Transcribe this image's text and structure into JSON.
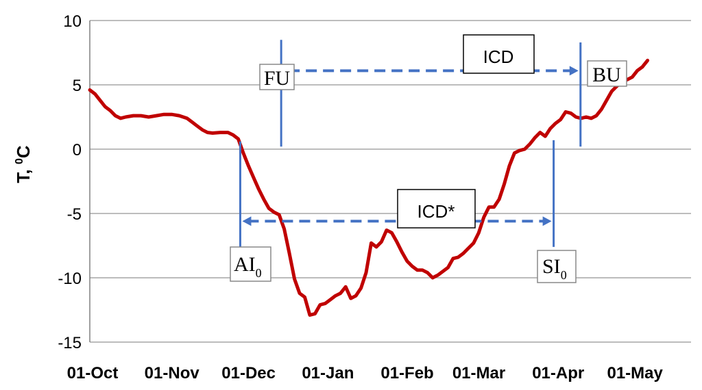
{
  "chart_data": {
    "type": "line",
    "title": "",
    "xlabel": "",
    "ylabel": "T, ⁰C",
    "ylabel_parts": {
      "main": "T, ",
      "sup": "0",
      "unit": "C"
    },
    "ylim": [
      -15,
      10
    ],
    "y_ticks": [
      10,
      5,
      0,
      -5,
      -10,
      -15
    ],
    "x_start": "2012-10-01",
    "x_ticks": [
      {
        "label": "01-Oct",
        "day": 0
      },
      {
        "label": "01-Nov",
        "day": 31
      },
      {
        "label": "01-Dec",
        "day": 61
      },
      {
        "label": "01-Jan",
        "day": 92
      },
      {
        "label": "01-Feb",
        "day": 123
      },
      {
        "label": "01-Mar",
        "day": 151
      },
      {
        "label": "01-Apr",
        "day": 182
      },
      {
        "label": "01-May",
        "day": 212
      }
    ],
    "xlim_days": [
      0,
      235
    ],
    "grid": true,
    "series": [
      {
        "color": "#c00000",
        "points": [
          [
            0,
            4.6
          ],
          [
            2,
            4.3
          ],
          [
            4,
            3.8
          ],
          [
            6,
            3.3
          ],
          [
            8,
            3.0
          ],
          [
            10,
            2.6
          ],
          [
            12,
            2.4
          ],
          [
            14,
            2.5
          ],
          [
            17,
            2.6
          ],
          [
            20,
            2.6
          ],
          [
            23,
            2.5
          ],
          [
            26,
            2.6
          ],
          [
            29,
            2.7
          ],
          [
            32,
            2.7
          ],
          [
            35,
            2.6
          ],
          [
            38,
            2.4
          ],
          [
            40,
            2.1
          ],
          [
            42,
            1.8
          ],
          [
            44,
            1.5
          ],
          [
            46,
            1.3
          ],
          [
            48,
            1.25
          ],
          [
            51,
            1.3
          ],
          [
            54,
            1.3
          ],
          [
            56,
            1.1
          ],
          [
            58,
            0.8
          ],
          [
            60,
            -0.3
          ],
          [
            62,
            -1.3
          ],
          [
            64,
            -2.2
          ],
          [
            66,
            -3.1
          ],
          [
            68,
            -3.9
          ],
          [
            70,
            -4.6
          ],
          [
            72,
            -4.9
          ],
          [
            74,
            -5.1
          ],
          [
            76,
            -6.2
          ],
          [
            78,
            -8.1
          ],
          [
            80,
            -10.1
          ],
          [
            82,
            -11.2
          ],
          [
            84,
            -11.5
          ],
          [
            86,
            -12.9
          ],
          [
            88,
            -12.8
          ],
          [
            90,
            -12.1
          ],
          [
            92,
            -12.0
          ],
          [
            94,
            -11.7
          ],
          [
            96,
            -11.4
          ],
          [
            98,
            -11.2
          ],
          [
            100,
            -10.7
          ],
          [
            102,
            -11.6
          ],
          [
            104,
            -11.4
          ],
          [
            106,
            -10.8
          ],
          [
            108,
            -9.6
          ],
          [
            110,
            -7.3
          ],
          [
            112,
            -7.6
          ],
          [
            114,
            -7.2
          ],
          [
            116,
            -6.3
          ],
          [
            118,
            -6.5
          ],
          [
            120,
            -7.2
          ],
          [
            122,
            -8.0
          ],
          [
            124,
            -8.7
          ],
          [
            126,
            -9.1
          ],
          [
            128,
            -9.4
          ],
          [
            130,
            -9.4
          ],
          [
            132,
            -9.6
          ],
          [
            134,
            -10.0
          ],
          [
            136,
            -9.8
          ],
          [
            138,
            -9.5
          ],
          [
            140,
            -9.2
          ],
          [
            142,
            -8.5
          ],
          [
            144,
            -8.4
          ],
          [
            146,
            -8.1
          ],
          [
            148,
            -7.7
          ],
          [
            150,
            -7.3
          ],
          [
            152,
            -6.5
          ],
          [
            154,
            -5.3
          ],
          [
            156,
            -4.5
          ],
          [
            158,
            -4.5
          ],
          [
            160,
            -3.9
          ],
          [
            162,
            -2.7
          ],
          [
            164,
            -1.3
          ],
          [
            166,
            -0.3
          ],
          [
            168,
            -0.1
          ],
          [
            170,
            0.0
          ],
          [
            172,
            0.4
          ],
          [
            174,
            0.9
          ],
          [
            176,
            1.3
          ],
          [
            178,
            1.0
          ],
          [
            180,
            1.6
          ],
          [
            182,
            2.0
          ],
          [
            184,
            2.3
          ],
          [
            186,
            2.9
          ],
          [
            188,
            2.8
          ],
          [
            190,
            2.5
          ],
          [
            192,
            2.4
          ],
          [
            194,
            2.5
          ],
          [
            196,
            2.4
          ],
          [
            198,
            2.6
          ],
          [
            200,
            3.1
          ],
          [
            202,
            3.8
          ],
          [
            204,
            4.5
          ],
          [
            206,
            4.9
          ],
          [
            208,
            5.2
          ],
          [
            210,
            5.4
          ],
          [
            212,
            5.6
          ],
          [
            214,
            6.1
          ],
          [
            216,
            6.4
          ],
          [
            218,
            6.9
          ]
        ]
      }
    ],
    "annotations": {
      "vlines": [
        {
          "name": "fu-line",
          "day": 74.8,
          "y_from": 0.2,
          "y_to": 8.5
        },
        {
          "name": "bu-line",
          "day": 191.8,
          "y_from": 0.2,
          "y_to": 8.3
        },
        {
          "name": "ai0-line",
          "day": 58.8,
          "y_from": -7.6,
          "y_to": 0.6
        },
        {
          "name": "si0-line",
          "day": 181.3,
          "y_from": -7.6,
          "y_to": 0.7
        }
      ],
      "arrows": [
        {
          "name": "icd-arrow",
          "from_day": 75.6,
          "to_day": 191.0,
          "y": 6.1
        },
        {
          "name": "icd-star-arrow",
          "from_day": 59.6,
          "to_day": 180.5,
          "y": -5.6
        }
      ],
      "labels": {
        "icd": "ICD",
        "icd_star": "ICD*",
        "fu": "FU",
        "bu": "BU",
        "ai0": {
          "main": "AI",
          "sub": "0"
        },
        "si0": {
          "main": "SI",
          "sub": "0"
        }
      }
    },
    "colors": {
      "line": "#c00000",
      "annotation": "#4472c4",
      "grid": "#a6a6a6"
    }
  }
}
